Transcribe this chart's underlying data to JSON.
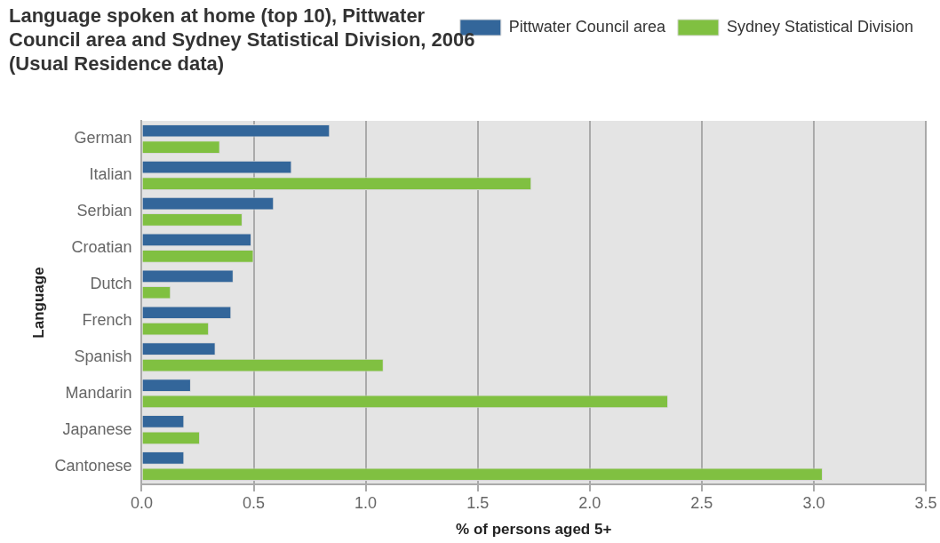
{
  "chart_data": {
    "type": "bar",
    "orientation": "horizontal",
    "title": "Language spoken at home (top 10), Pittwater Council area and Sydney Statistical Division, 2006 (Usual Residence data)",
    "xlabel": "% of persons aged 5+",
    "ylabel": "Language",
    "categories": [
      "German",
      "Italian",
      "Serbian",
      "Croatian",
      "Dutch",
      "French",
      "Spanish",
      "Mandarin",
      "Japanese",
      "Cantonese"
    ],
    "series": [
      {
        "name": "Pittwater Council area",
        "color": "#33669a",
        "values": [
          0.84,
          0.67,
          0.59,
          0.49,
          0.41,
          0.4,
          0.33,
          0.22,
          0.19,
          0.19
        ]
      },
      {
        "name": "Sydney Statistical Division",
        "color": "#80c041",
        "values": [
          0.35,
          1.74,
          0.45,
          0.5,
          0.13,
          0.3,
          1.08,
          2.35,
          0.26,
          3.04
        ]
      }
    ],
    "xlim": [
      0,
      3.5
    ],
    "xticks": [
      {
        "value": 0,
        "label": "0.0"
      },
      0.5,
      {
        "value": 1,
        "label": "1.0"
      },
      1.5,
      {
        "value": 2,
        "label": "2.0"
      },
      2.5,
      {
        "value": 3,
        "label": "3.0"
      },
      3.5
    ],
    "grid": "x",
    "legend": "top right"
  }
}
